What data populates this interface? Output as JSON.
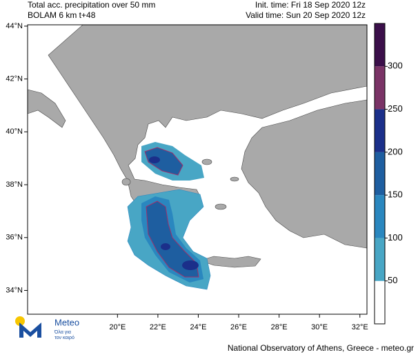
{
  "header": {
    "title": "Total acc. precipitation over 50 mm",
    "model": "BOLAM 6 km t+48",
    "init_time": "Init. time: Fri 18 Sep 2020 12z",
    "valid_time": "Valid time: Sun 20 Sep 2020 12z"
  },
  "map": {
    "xlim": [
      15.55,
      32.35
    ],
    "ylim": [
      33.1,
      44.05
    ],
    "xticks": [
      {
        "value": 20,
        "label": "20°E"
      },
      {
        "value": 22,
        "label": "22°E"
      },
      {
        "value": 24,
        "label": "24°E"
      },
      {
        "value": 26,
        "label": "26°E"
      },
      {
        "value": 28,
        "label": "28°E"
      },
      {
        "value": 30,
        "label": "30°E"
      },
      {
        "value": 32,
        "label": "32°E"
      }
    ],
    "yticks": [
      {
        "value": 34,
        "label": "34°N"
      },
      {
        "value": 36,
        "label": "36°N"
      },
      {
        "value": 38,
        "label": "38°N"
      },
      {
        "value": 40,
        "label": "40°N"
      },
      {
        "value": 42,
        "label": "42°N"
      },
      {
        "value": 44,
        "label": "44°N"
      }
    ]
  },
  "colorbar": {
    "ylim": [
      0,
      350
    ],
    "yticks": [
      50,
      100,
      150,
      200,
      250,
      300
    ],
    "colors": [
      "#ffffff",
      "#48a6c5",
      "#2a87bf",
      "#1e5ea0",
      "#1b2f8a",
      "#7a3366",
      "#3b0f4a"
    ]
  },
  "logo": {
    "name": "Meteo",
    "tagline_1": "Όλα για",
    "tagline_2": "τον καιρό"
  },
  "footer": "National Observatory of Athens, Greece - meteo.gr"
}
